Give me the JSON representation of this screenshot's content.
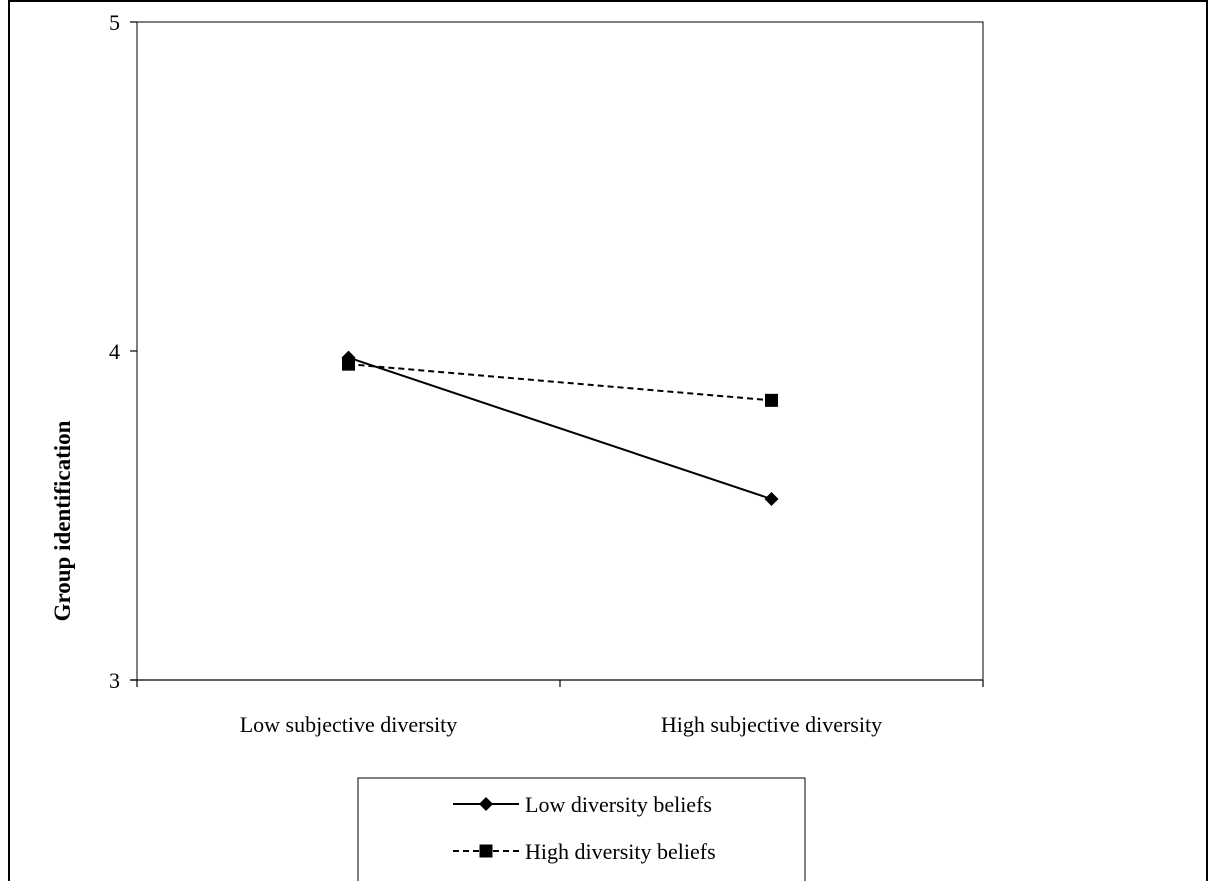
{
  "chart_data": {
    "type": "line",
    "title": "",
    "xlabel": "",
    "ylabel": "Group identification",
    "ylim": [
      3,
      5
    ],
    "yticks": [
      "3",
      "4",
      "5"
    ],
    "categories": [
      "Low subjective diversity",
      "High subjective diversity"
    ],
    "grid": false,
    "legend_position": "bottom",
    "series": [
      {
        "name": "Low diversity beliefs",
        "values": [
          3.98,
          3.55
        ],
        "marker": "diamond",
        "line_style": "solid",
        "color": "#000000"
      },
      {
        "name": "High diversity beliefs",
        "values": [
          3.96,
          3.85
        ],
        "marker": "square",
        "line_style": "dashed",
        "color": "#000000"
      }
    ]
  }
}
